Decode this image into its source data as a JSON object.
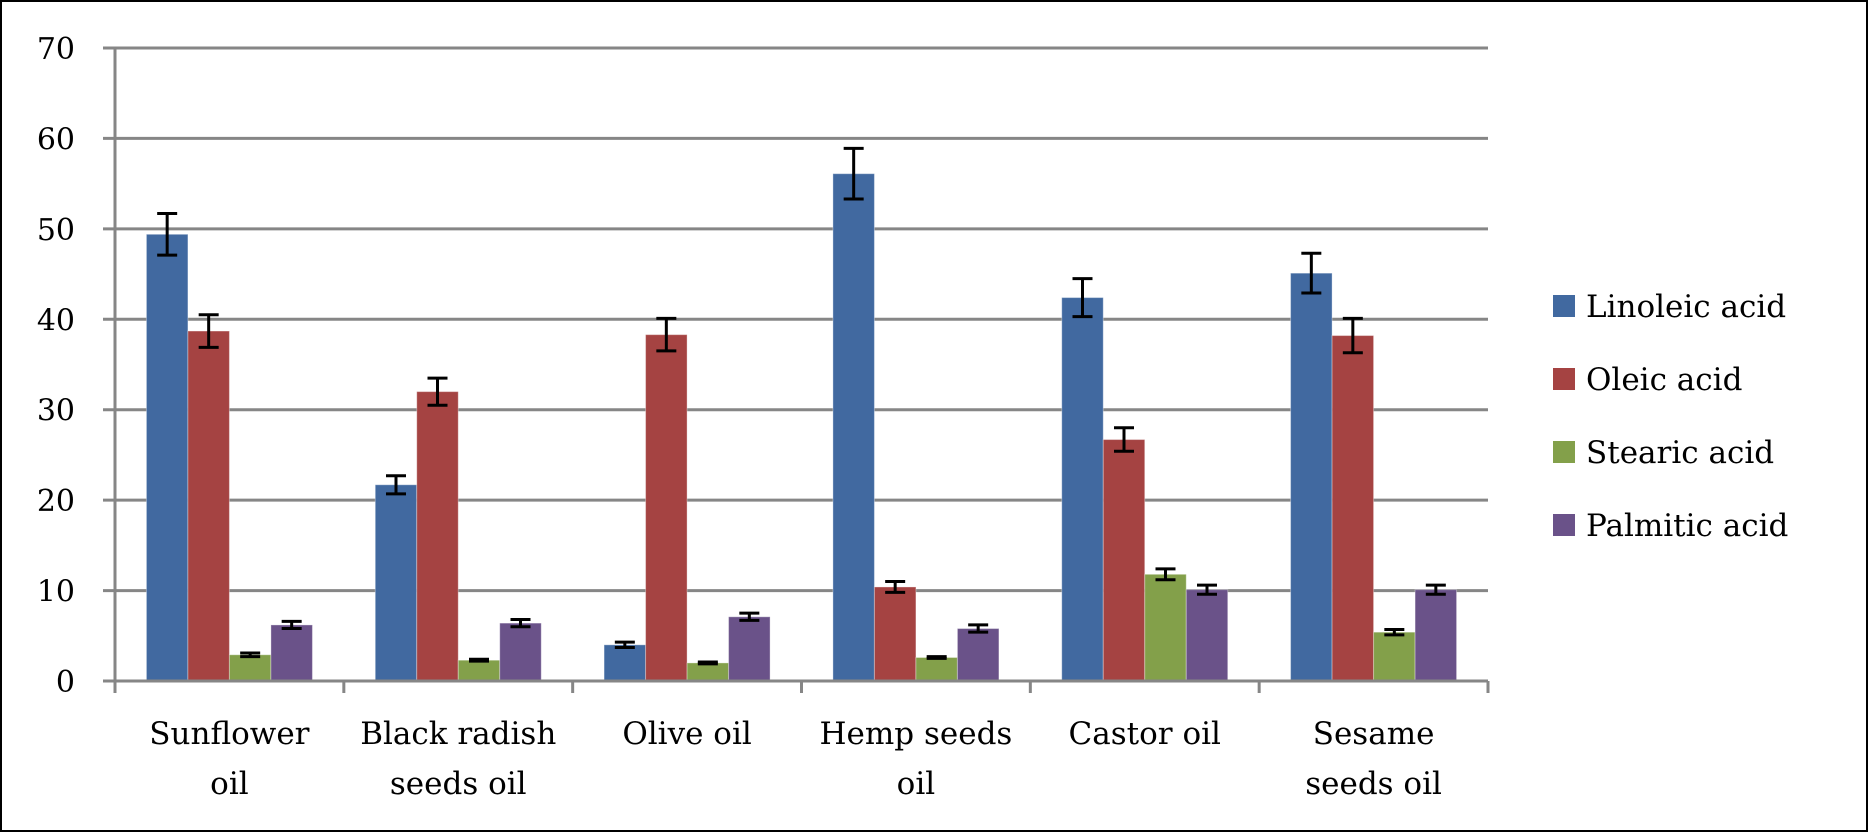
{
  "chart_data": {
    "type": "bar",
    "title": "",
    "xlabel": "",
    "ylabel": "",
    "ylim": [
      0,
      70
    ],
    "yticks": [
      0,
      10,
      20,
      30,
      40,
      50,
      60,
      70
    ],
    "grid": true,
    "legend_position": "right",
    "error_bars": true,
    "categories": [
      [
        "Sunflower",
        "oil"
      ],
      [
        "Black radish",
        "seeds oil"
      ],
      [
        "Olive oil"
      ],
      [
        "Hemp seeds",
        "oil"
      ],
      [
        "Castor oil"
      ],
      [
        "Sesame",
        "seeds oil"
      ]
    ],
    "series": [
      {
        "name": "Linoleic acid",
        "color": "#4169A0",
        "values": [
          49.4,
          21.7,
          4.0,
          56.1,
          42.4,
          45.1
        ],
        "errors": [
          2.3,
          1.0,
          0.3,
          2.8,
          2.1,
          2.2
        ]
      },
      {
        "name": "Oleic acid",
        "color": "#A54342",
        "values": [
          38.7,
          32.0,
          38.3,
          10.4,
          26.7,
          38.2
        ],
        "errors": [
          1.8,
          1.5,
          1.8,
          0.6,
          1.3,
          1.9
        ]
      },
      {
        "name": "Stearic acid",
        "color": "#83A04A",
        "values": [
          2.9,
          2.3,
          2.0,
          2.6,
          11.8,
          5.4
        ],
        "errors": [
          0.2,
          0.1,
          0.1,
          0.1,
          0.6,
          0.3
        ]
      },
      {
        "name": "Palmitic acid",
        "color": "#6A5289",
        "values": [
          6.2,
          6.4,
          7.1,
          5.8,
          10.1,
          10.1
        ],
        "errors": [
          0.4,
          0.4,
          0.4,
          0.4,
          0.5,
          0.5
        ]
      }
    ]
  }
}
